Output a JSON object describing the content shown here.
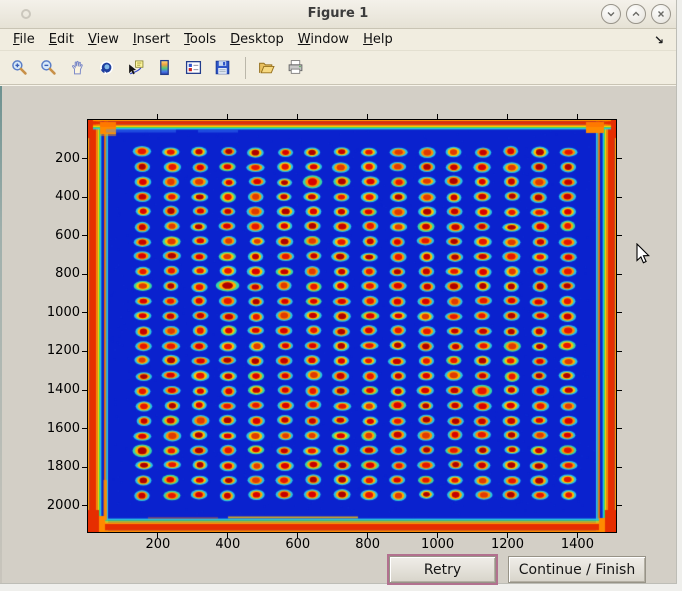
{
  "window": {
    "title": "Figure 1"
  },
  "menu": {
    "items": [
      {
        "label": "File"
      },
      {
        "label": "Edit"
      },
      {
        "label": "View"
      },
      {
        "label": "Insert"
      },
      {
        "label": "Tools"
      },
      {
        "label": "Desktop"
      },
      {
        "label": "Window"
      },
      {
        "label": "Help"
      }
    ],
    "dock_arrow_glyph": "↘"
  },
  "toolbar": {
    "icons": [
      {
        "name": "zoom-in"
      },
      {
        "name": "zoom-out"
      },
      {
        "name": "pan"
      },
      {
        "name": "rotate-3d"
      },
      {
        "name": "data-cursor"
      },
      {
        "name": "insert-colorbar"
      },
      {
        "name": "insert-legend"
      },
      {
        "name": "save-figure"
      },
      {
        "name": "open-file"
      },
      {
        "name": "print-figure"
      }
    ]
  },
  "dialog": {
    "retry_label": "Retry",
    "continue_label": "Continue / Finish"
  },
  "chart_data": {
    "type": "heatmap",
    "title": "",
    "xlabel": "",
    "ylabel": "",
    "x_ticks": [
      200,
      400,
      600,
      800,
      1000,
      1200,
      1400
    ],
    "y_ticks": [
      200,
      400,
      600,
      800,
      1000,
      1200,
      1400,
      1600,
      1800,
      2000
    ],
    "x_range": [
      0,
      1512
    ],
    "y_range": [
      0,
      2135
    ],
    "colormap": "jet",
    "grid": {
      "cols": 16,
      "rows": 24
    },
    "description": "Jet-colormap intensity image of a 384-well microplate: 16 columns x 24 rows of hot spots (red cores, orange rings, cyan halos) on a deep blue field, framed by a red-orange plate edge"
  },
  "figure": {
    "image": {
      "field_color": "#0A22CE",
      "halo_color": "#27C6E4",
      "halo_alt_color": "#35D8A8",
      "ring_colors": [
        "#FFB000",
        "#FFA000",
        "#FF9300",
        "#FFC400"
      ],
      "core_colors": [
        "#D80000",
        "#C40000",
        "#E61500",
        "#AE0000",
        "#E03A00"
      ],
      "band_red": "#E62E00",
      "band_orange": "#FF8A00",
      "band_orange2": "#FF9800",
      "band_yellow": "#FFD500",
      "band_green": "#44D556",
      "band_cyan": "#2AC4E8"
    }
  },
  "colors": {
    "chrome_bg": "#F1EDE0",
    "titlebar_bg": "#EDE9DC",
    "canvas_bg": "#D3CFC6",
    "retry_focus_ring": "#B2718F",
    "button_face": "#DFDBD2",
    "window_border_accent": "#5F8686"
  }
}
